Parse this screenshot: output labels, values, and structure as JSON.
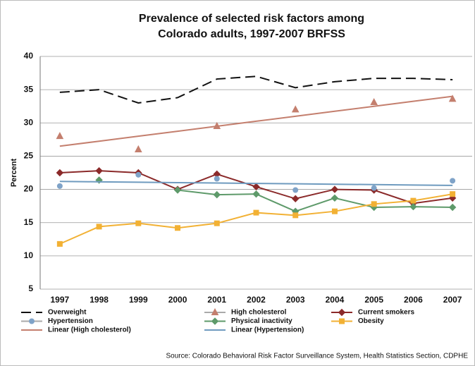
{
  "chart_data": {
    "type": "line",
    "title": [
      "Prevalence of selected risk factors among",
      "Colorado adults, 1997-2007 BRFSS"
    ],
    "y_label": "Percent",
    "source": "Source: Colorado Behavioral Risk Factor Surveillance System, Health Statistics Section, CDPHE",
    "categories": [
      "1997",
      "1998",
      "1999",
      "2000",
      "2001",
      "2002",
      "2003",
      "2004",
      "2005",
      "2006",
      "2007"
    ],
    "ylim": [
      5,
      40
    ],
    "yticks": [
      5,
      10,
      15,
      20,
      25,
      30,
      35,
      40
    ],
    "grid": true,
    "legend": "bottom",
    "series": [
      {
        "name": "Overweight",
        "color": "#111111",
        "line": "dashed",
        "marker": "none",
        "values": [
          34.6,
          35,
          33,
          33.8,
          36.6,
          37,
          35.3,
          36.2,
          36.7,
          36.7,
          36.5
        ]
      },
      {
        "name": "High cholesterol",
        "color": "#c47f6e",
        "line": "none",
        "marker": "triangle",
        "values": [
          28,
          null,
          26,
          null,
          29.5,
          null,
          32,
          null,
          33.1,
          null,
          33.6
        ]
      },
      {
        "name": "Current smokers",
        "color": "#8b2a2a",
        "line": "solid",
        "marker": "diamond",
        "values": [
          22.5,
          22.8,
          22.5,
          20,
          22.3,
          20.4,
          18.6,
          20,
          19.9,
          17.9,
          18.7
        ]
      },
      {
        "name": "Hypertension",
        "color": "#7fa3c8",
        "line": "none",
        "marker": "circle",
        "values": [
          20.5,
          null,
          22.2,
          null,
          21.6,
          null,
          19.9,
          null,
          20.2,
          null,
          21.3
        ]
      },
      {
        "name": "Physical inactivity",
        "color": "#5e9a6a",
        "line": "solid",
        "marker": "diamond",
        "values": [
          null,
          21.4,
          null,
          19.9,
          19.2,
          19.3,
          16.7,
          18.7,
          17.3,
          17.4,
          17.3
        ]
      },
      {
        "name": "Obesity",
        "color": "#f2b134",
        "line": "solid",
        "marker": "square",
        "values": [
          11.8,
          14.4,
          14.9,
          14.2,
          14.9,
          16.5,
          16.1,
          16.7,
          17.8,
          18.3,
          19.3
        ]
      },
      {
        "name": "Linear (High cholesterol)",
        "color": "#c47f6e",
        "line": "solid",
        "marker": "none",
        "values": [
          26.5,
          27.25,
          28,
          28.75,
          29.5,
          30.25,
          31,
          31.75,
          32.5,
          33.25,
          34
        ]
      },
      {
        "name": "Linear (Hypertension)",
        "color": "#6f9bbf",
        "line": "solid",
        "marker": "none",
        "values": [
          21.2,
          21.14,
          21.08,
          21.02,
          20.96,
          20.9,
          20.84,
          20.78,
          20.72,
          20.66,
          20.6
        ]
      }
    ]
  }
}
